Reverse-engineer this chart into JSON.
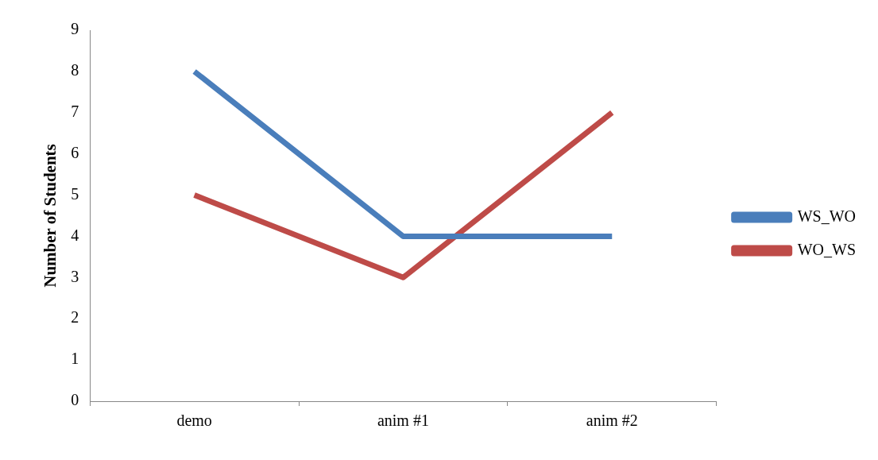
{
  "chart_data": {
    "type": "line",
    "ylabel": "Number of Students",
    "categories": [
      "demo",
      "anim #1",
      "anim #2"
    ],
    "series": [
      {
        "name": "WS_WO",
        "color": "#4a7ebb",
        "values": [
          8,
          4,
          4
        ]
      },
      {
        "name": "WO_WS",
        "color": "#be4b48",
        "values": [
          5,
          3,
          7
        ]
      }
    ],
    "ylim": [
      0,
      9
    ],
    "yticks": [
      0,
      1,
      2,
      3,
      4,
      5,
      6,
      7,
      8,
      9
    ],
    "legend": "right",
    "marker": "none"
  }
}
